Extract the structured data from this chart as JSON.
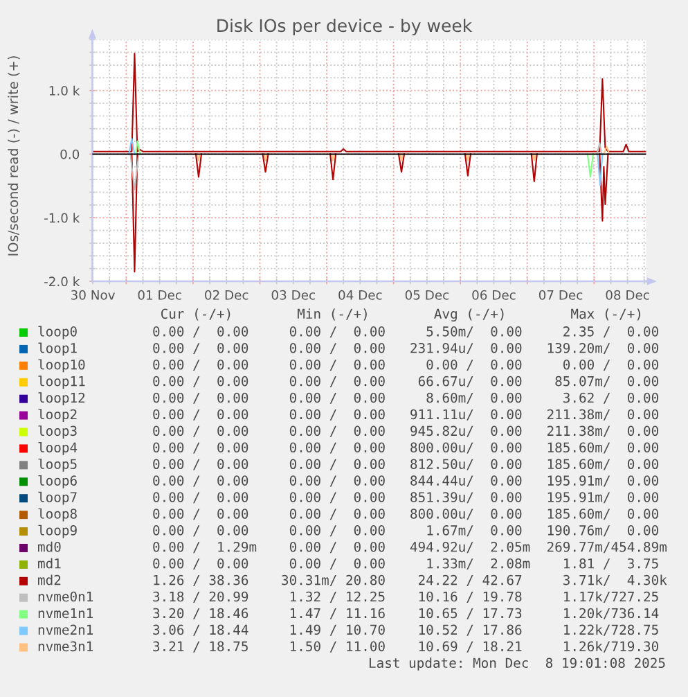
{
  "chart_data": {
    "type": "line",
    "title": "Disk IOs per device - by week",
    "ylabel": "IOs/second read (-) / write (+)",
    "xlim": [
      "2025-11-30T11:50",
      "2025-12-08T18:40"
    ],
    "ylim": [
      -2000,
      1800
    ],
    "xticks": [
      {
        "value": "2025-11-30T12:00",
        "label": "30 Nov"
      },
      {
        "value": "2025-11-30T18:00",
        "label": null
      },
      {
        "value": "2025-12-01T00:00",
        "label": null
      },
      {
        "value": "2025-12-01T06:00",
        "label": null
      },
      {
        "value": "2025-12-01T12:00",
        "label": "01 Dec"
      },
      {
        "value": "2025-12-01T18:00",
        "label": null
      },
      {
        "value": "2025-12-02T00:00",
        "label": null
      },
      {
        "value": "2025-12-02T06:00",
        "label": null
      },
      {
        "value": "2025-12-02T12:00",
        "label": "02 Dec"
      },
      {
        "value": "2025-12-02T18:00",
        "label": null
      },
      {
        "value": "2025-12-03T00:00",
        "label": null
      },
      {
        "value": "2025-12-03T06:00",
        "label": null
      },
      {
        "value": "2025-12-03T12:00",
        "label": "03 Dec"
      },
      {
        "value": "2025-12-03T18:00",
        "label": null
      },
      {
        "value": "2025-12-04T00:00",
        "label": null
      },
      {
        "value": "2025-12-04T06:00",
        "label": null
      },
      {
        "value": "2025-12-04T12:00",
        "label": "04 Dec"
      },
      {
        "value": "2025-12-04T18:00",
        "label": null
      },
      {
        "value": "2025-12-05T00:00",
        "label": null
      },
      {
        "value": "2025-12-05T06:00",
        "label": null
      },
      {
        "value": "2025-12-05T12:00",
        "label": "05 Dec"
      },
      {
        "value": "2025-12-05T18:00",
        "label": null
      },
      {
        "value": "2025-12-06T00:00",
        "label": null
      },
      {
        "value": "2025-12-06T06:00",
        "label": null
      },
      {
        "value": "2025-12-06T12:00",
        "label": "06 Dec"
      },
      {
        "value": "2025-12-06T18:00",
        "label": null
      },
      {
        "value": "2025-12-07T00:00",
        "label": null
      },
      {
        "value": "2025-12-07T06:00",
        "label": null
      },
      {
        "value": "2025-12-07T12:00",
        "label": "07 Dec"
      },
      {
        "value": "2025-12-07T18:00",
        "label": null
      },
      {
        "value": "2025-12-08T00:00",
        "label": null
      },
      {
        "value": "2025-12-08T06:00",
        "label": null
      },
      {
        "value": "2025-12-08T12:00",
        "label": "08 Dec"
      },
      {
        "value": "2025-12-08T18:00",
        "label": null
      }
    ],
    "yticks": [
      {
        "value": -2000,
        "label": "-2.0 k"
      },
      {
        "value": -1800,
        "label": null
      },
      {
        "value": -1600,
        "label": null
      },
      {
        "value": -1400,
        "label": null
      },
      {
        "value": -1200,
        "label": null
      },
      {
        "value": -1000,
        "label": "-1.0 k"
      },
      {
        "value": -800,
        "label": null
      },
      {
        "value": -600,
        "label": null
      },
      {
        "value": -400,
        "label": null
      },
      {
        "value": -200,
        "label": null
      },
      {
        "value": 0,
        "label": "0.0"
      },
      {
        "value": 200,
        "label": null
      },
      {
        "value": 400,
        "label": null
      },
      {
        "value": 600,
        "label": null
      },
      {
        "value": 800,
        "label": null
      },
      {
        "value": 1000,
        "label": "1.0 k"
      },
      {
        "value": 1200,
        "label": null
      },
      {
        "value": 1400,
        "label": null
      },
      {
        "value": 1600,
        "label": null
      },
      {
        "value": 1800,
        "label": null
      }
    ],
    "grid": true,
    "legend": "bottom",
    "ref_lines": [
      {
        "axis": "y",
        "value": 0,
        "color": "#000000"
      }
    ],
    "annotations": [
      "Cur (-/+)        Min (-/+)        Avg (-/+)        Max (-/+)",
      "0.00 /  0.00     0.00 /  0.00     5.50m/  0.00     2.35 /  0.00",
      "0.00 /  0.00     0.00 /  0.00   231.94u/  0.00   139.20m/  0.00",
      "0.00 /  0.00     0.00 /  0.00     0.00 /  0.00     0.00 /  0.00",
      "0.00 /  0.00     0.00 /  0.00    66.67u/  0.00    85.07m/  0.00",
      "0.00 /  0.00     0.00 /  0.00     8.60m/  0.00     3.62 /  0.00",
      "0.00 /  0.00     0.00 /  0.00   911.11u/  0.00   211.38m/  0.00",
      "0.00 /  0.00     0.00 /  0.00   945.82u/  0.00   211.38m/  0.00",
      "0.00 /  0.00     0.00 /  0.00   800.00u/  0.00   185.60m/  0.00",
      "0.00 /  0.00     0.00 /  0.00   812.50u/  0.00   185.60m/  0.00",
      "0.00 /  0.00     0.00 /  0.00   844.44u/  0.00   195.91m/  0.00",
      "0.00 /  0.00     0.00 /  0.00   851.39u/  0.00   195.91m/  0.00",
      "0.00 /  0.00     0.00 /  0.00   800.00u/  0.00   185.60m/  0.00",
      "0.00 /  0.00     0.00 /  0.00     1.67m/  0.00   190.76m/  0.00",
      "0.00 /  1.29m    0.00 /  0.00   494.92u/  2.05m  269.77m/454.89m",
      "0.00 /  0.00     0.00 /  0.00     1.33m/  2.08m    1.81 /  3.75",
      "1.26 / 38.36    30.31m/ 20.80    24.22 / 42.67     3.71k/  4.30k",
      "3.18 / 20.99     1.32 / 12.25    10.16 / 19.78     1.17k/727.25",
      "3.20 / 18.46     1.47 / 11.16    10.65 / 17.73     1.20k/736.14",
      "3.06 / 18.44     1.49 / 10.70    10.52 / 17.86     1.22k/728.75",
      "3.21 / 18.75     1.50 / 11.00    10.69 / 18.21     1.26k/719.30",
      "Last update: Mon Dec  8 19:01:08 2025"
    ],
    "series": [
      {
        "name": "loop0",
        "color": "#00cc00"
      },
      {
        "name": "loop1",
        "color": "#0066b3"
      },
      {
        "name": "loop10",
        "color": "#ff8000"
      },
      {
        "name": "loop11",
        "color": "#ffcc00"
      },
      {
        "name": "loop12",
        "color": "#330099"
      },
      {
        "name": "loop2",
        "color": "#990099"
      },
      {
        "name": "loop3",
        "color": "#ccff00"
      },
      {
        "name": "loop4",
        "color": "#ff0000"
      },
      {
        "name": "loop5",
        "color": "#808080"
      },
      {
        "name": "loop6",
        "color": "#008f00"
      },
      {
        "name": "loop7",
        "color": "#00487d"
      },
      {
        "name": "loop8",
        "color": "#b35a00"
      },
      {
        "name": "loop9",
        "color": "#b38f00"
      },
      {
        "name": "md0",
        "color": "#6b006b"
      },
      {
        "name": "md1",
        "color": "#8fb300"
      },
      {
        "color": "#b30000",
        "x": [
          "2025-12-01T02:00",
          "2025-12-01T03:00",
          "2025-12-01T04:00",
          "2025-12-01T12:00",
          "2025-12-02T01:00",
          "2025-12-02T02:00",
          "2025-12-02T03:00",
          "2025-12-02T12:00",
          "2025-12-03T01:00",
          "2025-12-03T02:00",
          "2025-12-03T03:00",
          "2025-12-03T12:00",
          "2025-12-04T01:15",
          "2025-12-04T02:15",
          "2025-12-04T03:15",
          "2025-12-04T12:00",
          "2025-12-05T01:50",
          "2025-12-05T02:50",
          "2025-12-05T03:50",
          "2025-12-05T12:00",
          "2025-12-06T01:40",
          "2025-12-06T02:40",
          "2025-12-06T03:40",
          "2025-12-06T12:00",
          "2025-12-07T01:30",
          "2025-12-07T02:30",
          "2025-12-07T03:30",
          "2025-12-07T12:00",
          "2025-12-08T02:00",
          "2025-12-08T03:00",
          "2025-12-08T03:30",
          "2025-12-08T04:00",
          "2025-12-08T05:00"
        ],
        "values": [
          0,
          -1850,
          0,
          null,
          0,
          -360,
          0,
          null,
          0,
          -280,
          0,
          null,
          0,
          -400,
          0,
          null,
          0,
          -280,
          0,
          null,
          0,
          -340,
          0,
          null,
          0,
          -430,
          0,
          null,
          0,
          -1050,
          -200,
          -790,
          0
        ]
      },
      {
        "name": "md2",
        "color": "#b30000",
        "x": [
          "2025-11-30T11:50",
          "2025-12-01T02:00",
          "2025-12-01T03:00",
          "2025-12-01T04:00",
          "2025-12-01T05:00",
          "2025-12-01T06:00",
          "2025-12-04T05:00",
          "2025-12-04T06:00",
          "2025-12-04T07:00",
          "2025-12-08T02:00",
          "2025-12-08T03:00",
          "2025-12-08T04:00",
          "2025-12-08T05:00",
          "2025-12-08T10:30",
          "2025-12-08T11:30",
          "2025-12-08T12:30",
          "2025-12-08T18:40"
        ],
        "values": [
          40,
          40,
          1580,
          40,
          70,
          40,
          40,
          80,
          40,
          40,
          1180,
          100,
          40,
          40,
          150,
          40,
          40
        ]
      },
      {
        "color": "#bebebe",
        "x": [
          "2025-12-01T01:30",
          "2025-12-01T03:00",
          "2025-12-01T04:30"
        ],
        "values": [
          0,
          -560,
          0
        ]
      },
      {
        "name": "nvme0n1",
        "color": "#bebebe",
        "x": [
          "2025-12-08T01:00",
          "2025-12-08T02:00",
          "2025-12-08T02:45"
        ],
        "values": [
          0,
          170,
          0
        ]
      },
      {
        "color": "#80ff80",
        "x": [
          "2025-12-07T21:40",
          "2025-12-07T22:40",
          "2025-12-07T23:40"
        ],
        "values": [
          0,
          -360,
          0
        ]
      },
      {
        "name": "nvme1n1",
        "color": "#80ff80",
        "x": [
          "2025-12-01T03:30",
          "2025-12-01T04:00",
          "2025-12-01T05:00"
        ],
        "values": [
          0,
          200,
          0
        ]
      },
      {
        "color": "#80c9ff",
        "x": [
          "2025-12-08T01:15",
          "2025-12-08T02:10",
          "2025-12-08T03:00"
        ],
        "values": [
          0,
          -490,
          0
        ]
      },
      {
        "name": "nvme2n1",
        "color": "#80c9ff",
        "x": [
          "2025-12-01T01:00",
          "2025-12-01T02:00",
          "2025-12-01T03:00"
        ],
        "values": [
          0,
          240,
          0
        ]
      },
      {
        "color": "#ffc080",
        "x": [
          "2025-12-02T01:30",
          "2025-12-02T02:00",
          "2025-12-02T02:30",
          "2025-12-02T12:00",
          "2025-12-03T01:30",
          "2025-12-03T02:00",
          "2025-12-03T02:30",
          "2025-12-03T12:00",
          "2025-12-04T01:45",
          "2025-12-04T02:15",
          "2025-12-04T02:45",
          "2025-12-04T12:00",
          "2025-12-05T02:20",
          "2025-12-05T02:50",
          "2025-12-05T03:20",
          "2025-12-05T12:00",
          "2025-12-06T02:10",
          "2025-12-06T02:40",
          "2025-12-06T03:10",
          "2025-12-06T12:00",
          "2025-12-07T02:00",
          "2025-12-07T02:30",
          "2025-12-07T03:00"
        ],
        "values": [
          0,
          -100,
          0,
          null,
          0,
          -100,
          0,
          null,
          0,
          -100,
          0,
          null,
          0,
          -100,
          0,
          null,
          0,
          -100,
          0,
          null,
          0,
          -100,
          0
        ]
      },
      {
        "name": "nvme3n1",
        "color": "#ffc080",
        "x": [
          "2025-12-08T03:30",
          "2025-12-08T04:30",
          "2025-12-08T05:30"
        ],
        "values": [
          0,
          120,
          0
        ]
      }
    ]
  }
}
